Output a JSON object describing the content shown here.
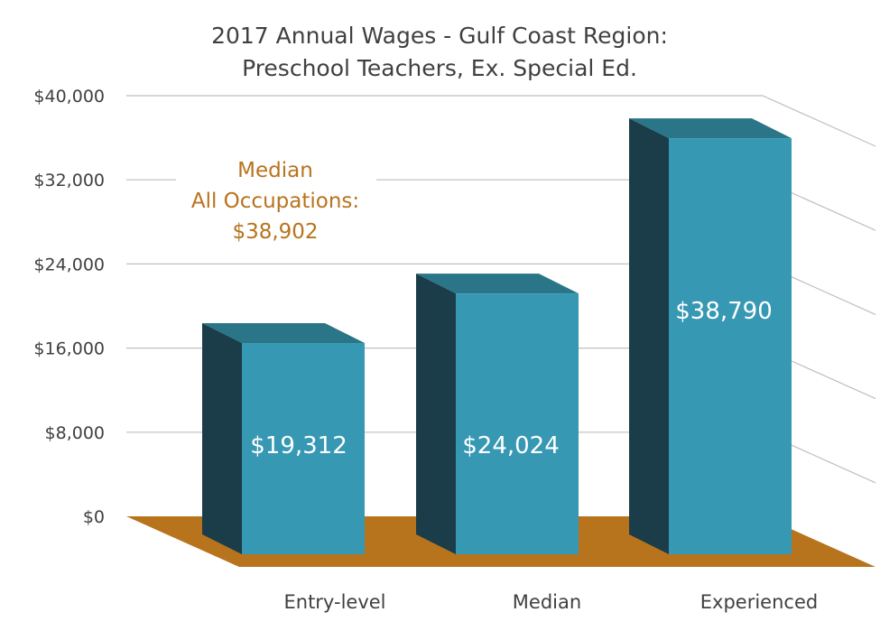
{
  "chart_data": {
    "type": "bar",
    "title": [
      "2017 Annual Wages - Gulf Coast Region:",
      "Preschool Teachers, Ex. Special Ed."
    ],
    "categories": [
      "Entry-level",
      "Median",
      "Experienced"
    ],
    "values": [
      19312,
      24024,
      38790
    ],
    "data_labels": [
      "$19,312",
      "$24,024",
      "$38,790"
    ],
    "ylim": [
      0,
      40000
    ],
    "y_ticks": [
      0,
      8000,
      16000,
      24000,
      32000,
      40000
    ],
    "y_tick_labels": [
      "$0",
      "$8,000",
      "$16,000",
      "$24,000",
      "$32,000",
      "$40,000"
    ],
    "grid": true,
    "style": "3d",
    "annotation": [
      "Median",
      "All Occupations:",
      "$38,902"
    ],
    "colors": {
      "bar_front": "#3798B3",
      "bar_side": "#1A3D49",
      "bar_top": "#2A7587",
      "floor": "#B8731D",
      "annotation": "#B8731D",
      "gridline": "#BFBFBF"
    }
  }
}
